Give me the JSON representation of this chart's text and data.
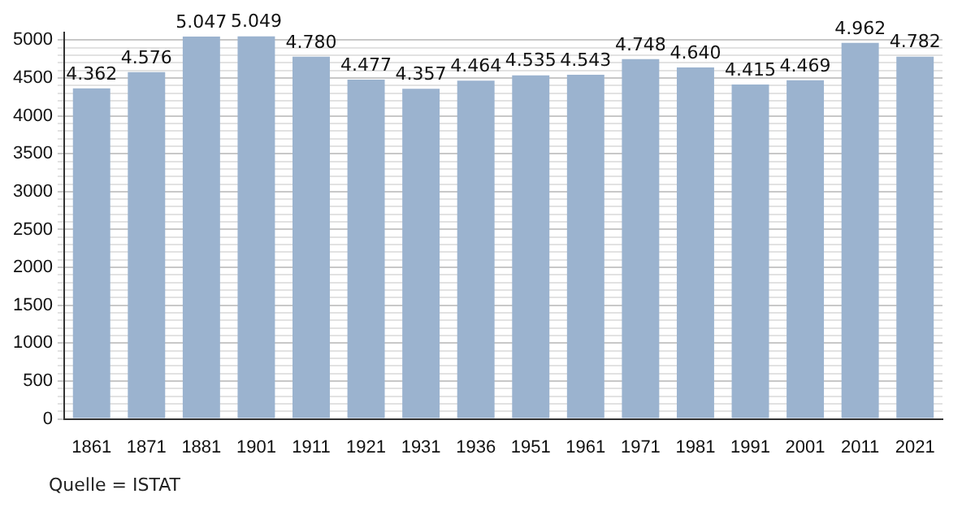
{
  "chart_data": {
    "type": "bar",
    "categories": [
      "1861",
      "1871",
      "1881",
      "1901",
      "1911",
      "1921",
      "1931",
      "1936",
      "1951",
      "1961",
      "1971",
      "1981",
      "1991",
      "2001",
      "2011",
      "2021"
    ],
    "values": [
      4362,
      4576,
      5047,
      5049,
      4780,
      4477,
      4357,
      4464,
      4535,
      4543,
      4748,
      4640,
      4415,
      4469,
      4962,
      4782
    ],
    "value_labels": [
      "4.362",
      "4.576",
      "5.047",
      "5.049",
      "4.780",
      "4.477",
      "4.357",
      "4.464",
      "4.535",
      "4.543",
      "4.748",
      "4.640",
      "4.415",
      "4.469",
      "4.962",
      "4.782"
    ],
    "color": "#9bb3cf",
    "ylim": [
      0,
      5100
    ],
    "yticks": [
      0,
      {
        "value": 100,
        "label": null
      },
      {
        "value": 200,
        "label": null
      },
      {
        "value": 300,
        "label": null
      },
      {
        "value": 400,
        "label": null
      },
      500,
      {
        "value": 600,
        "label": null
      },
      {
        "value": 700,
        "label": null
      },
      {
        "value": 800,
        "label": null
      },
      {
        "value": 900,
        "label": null
      },
      1000,
      {
        "value": 1100,
        "label": null
      },
      {
        "value": 1200,
        "label": null
      },
      {
        "value": 1300,
        "label": null
      },
      {
        "value": 1400,
        "label": null
      },
      1500,
      {
        "value": 1600,
        "label": null
      },
      {
        "value": 1700,
        "label": null
      },
      {
        "value": 1800,
        "label": null
      },
      {
        "value": 1900,
        "label": null
      },
      2000,
      {
        "value": 2100,
        "label": null
      },
      {
        "value": 2200,
        "label": null
      },
      {
        "value": 2300,
        "label": null
      },
      {
        "value": 2400,
        "label": null
      },
      2500,
      {
        "value": 2600,
        "label": null
      },
      {
        "value": 2700,
        "label": null
      },
      {
        "value": 2800,
        "label": null
      },
      {
        "value": 2900,
        "label": null
      },
      3000,
      {
        "value": 3100,
        "label": null
      },
      {
        "value": 3200,
        "label": null
      },
      {
        "value": 3300,
        "label": null
      },
      {
        "value": 3400,
        "label": null
      },
      3500,
      {
        "value": 3600,
        "label": null
      },
      {
        "value": 3700,
        "label": null
      },
      {
        "value": 3800,
        "label": null
      },
      {
        "value": 3900,
        "label": null
      },
      4000,
      {
        "value": 4100,
        "label": null
      },
      {
        "value": 4200,
        "label": null
      },
      {
        "value": 4300,
        "label": null
      },
      {
        "value": 4400,
        "label": null
      },
      4500,
      {
        "value": 4600,
        "label": null
      },
      {
        "value": 4700,
        "label": null
      },
      {
        "value": 4800,
        "label": null
      },
      {
        "value": 4900,
        "label": null
      },
      5000
    ],
    "grid": "y",
    "legend": false,
    "annotations": [
      "Quelle = ISTAT"
    ]
  }
}
